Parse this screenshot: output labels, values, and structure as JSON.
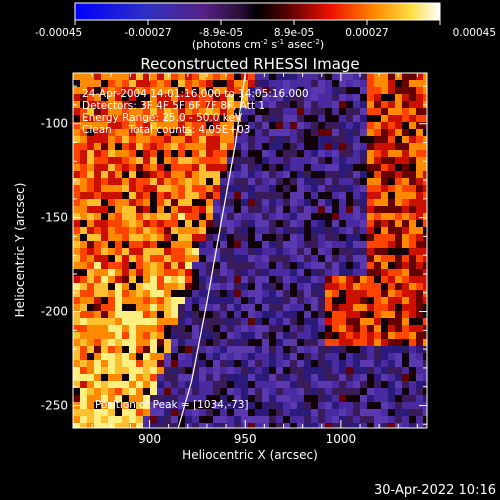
{
  "chart_data": {
    "type": "heatmap",
    "title": "Reconstructed RHESSI Image",
    "xlabel": "Heliocentric X (arcsec)",
    "ylabel": "Heliocentric Y (arcsec)",
    "xlim": [
      860,
      1045
    ],
    "ylim": [
      -262,
      -73
    ],
    "xticks": [
      900,
      950,
      1000
    ],
    "yticks": [
      -100,
      -150,
      -200,
      -250
    ],
    "colorbar": {
      "ticks": [
        "-0.00045",
        "-0.00027",
        "-8.9e-05",
        "8.9e-05",
        "0.00027",
        "0.00045"
      ],
      "range": [
        -0.00045,
        0.00045
      ],
      "unit_parts": [
        "(photons cm",
        "-2",
        " s",
        "-1",
        " asec",
        "-2",
        ")"
      ]
    },
    "annotations": [
      "24-Apr-2004 14:01:16.000 to 14:05:16.000",
      "Detectors: 3F 4F 5F 6F 7F 8F, Att 1",
      "Energy Range: 25.0 - 50.0 keV",
      "Clean     Total counts: 4.05E+03"
    ],
    "peak_label": "Position of Peak = [1034,-73]",
    "limb": [
      [
        915,
        -262
      ],
      [
        922,
        -237
      ],
      [
        930,
        -195
      ],
      [
        937,
        -155
      ],
      [
        945,
        -110
      ],
      [
        950,
        -73
      ]
    ],
    "colors": {
      "positive": "#ff3000",
      "peak": "#ffff80",
      "negative": "#3a1a9a",
      "limb": "#ffffff"
    }
  },
  "footer": {
    "timestamp": "30-Apr-2022 10:16"
  }
}
